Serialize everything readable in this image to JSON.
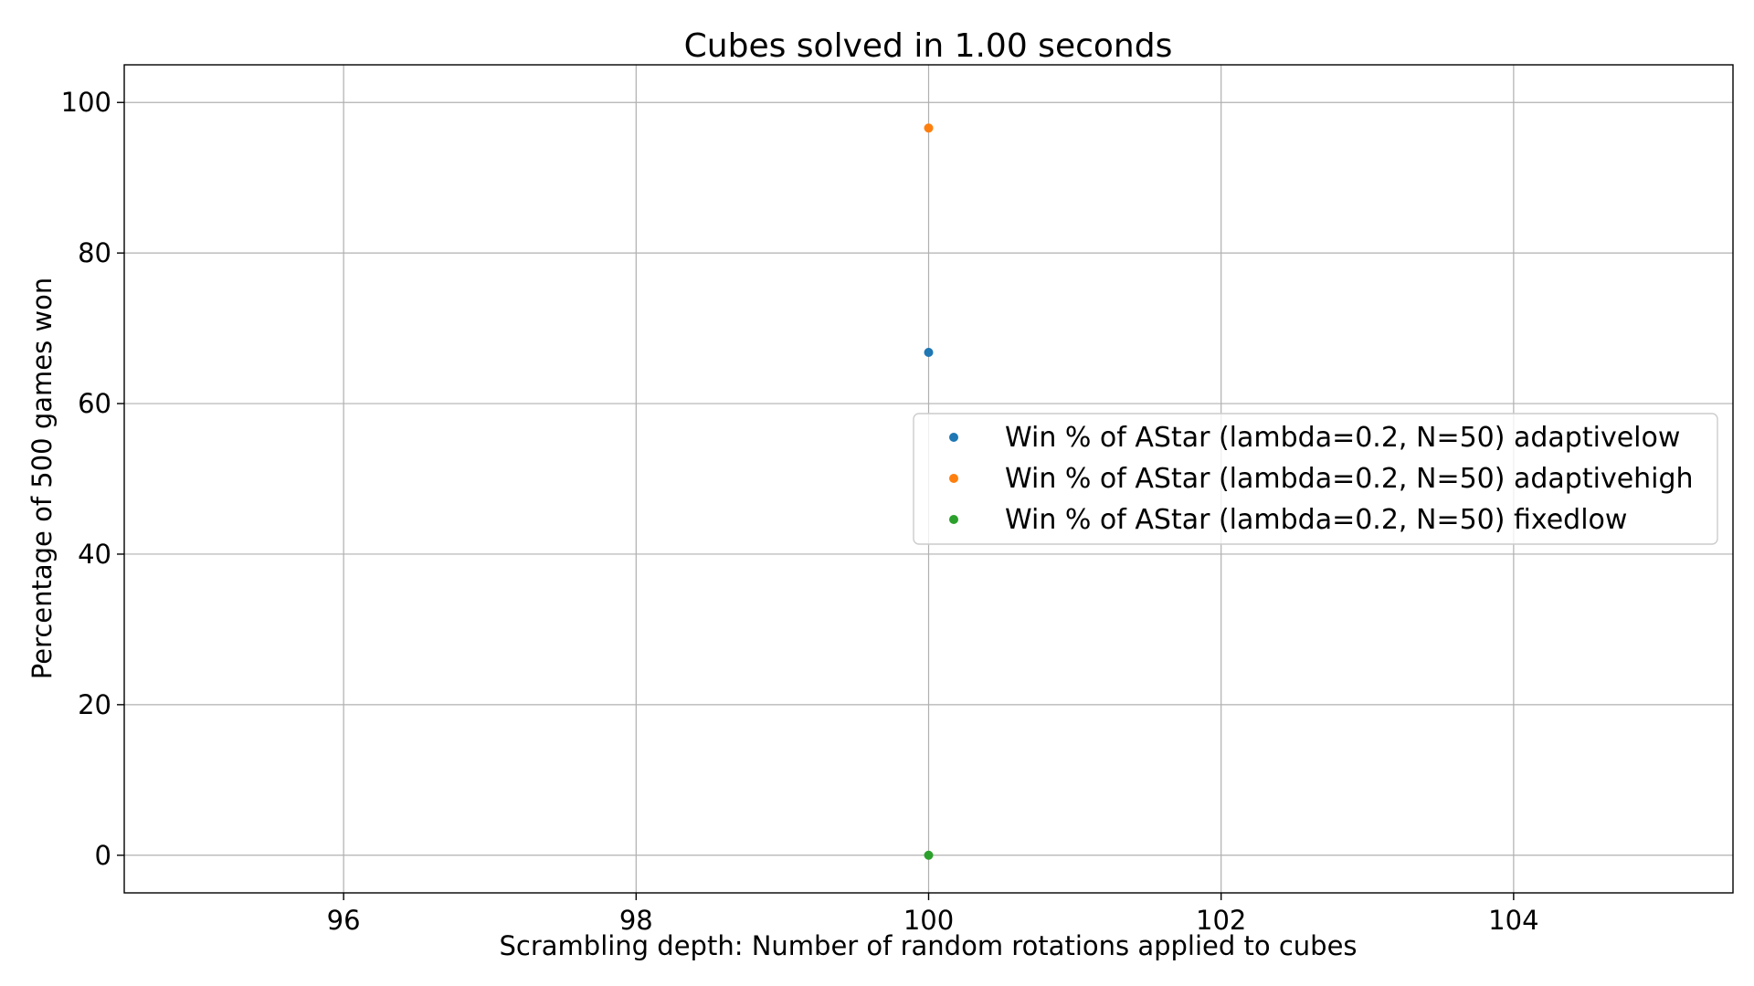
{
  "chart_data": {
    "type": "scatter",
    "title": "Cubes solved in 1.00 seconds",
    "xlabel": "Scrambling depth: Number of random rotations applied to cubes",
    "ylabel": "Percentage of 500 games won",
    "xlim": [
      94.5,
      105.5
    ],
    "ylim": [
      -5,
      105
    ],
    "xticks": [
      96,
      98,
      100,
      102,
      104
    ],
    "yticks": [
      0,
      20,
      40,
      60,
      80,
      100
    ],
    "grid": true,
    "legend_position": "center-right",
    "series": [
      {
        "name": "Win % of AStar (lambda=0.2, N=50) adaptivelow",
        "color": "#1f77b4",
        "x": [
          100
        ],
        "y": [
          66.8
        ]
      },
      {
        "name": "Win % of AStar (lambda=0.2, N=50) adaptivehigh",
        "color": "#ff7f0e",
        "x": [
          100
        ],
        "y": [
          96.6
        ]
      },
      {
        "name": "Win % of AStar (lambda=0.2, N=50) fixedlow",
        "color": "#2ca02c",
        "x": [
          100
        ],
        "y": [
          0
        ]
      }
    ]
  }
}
